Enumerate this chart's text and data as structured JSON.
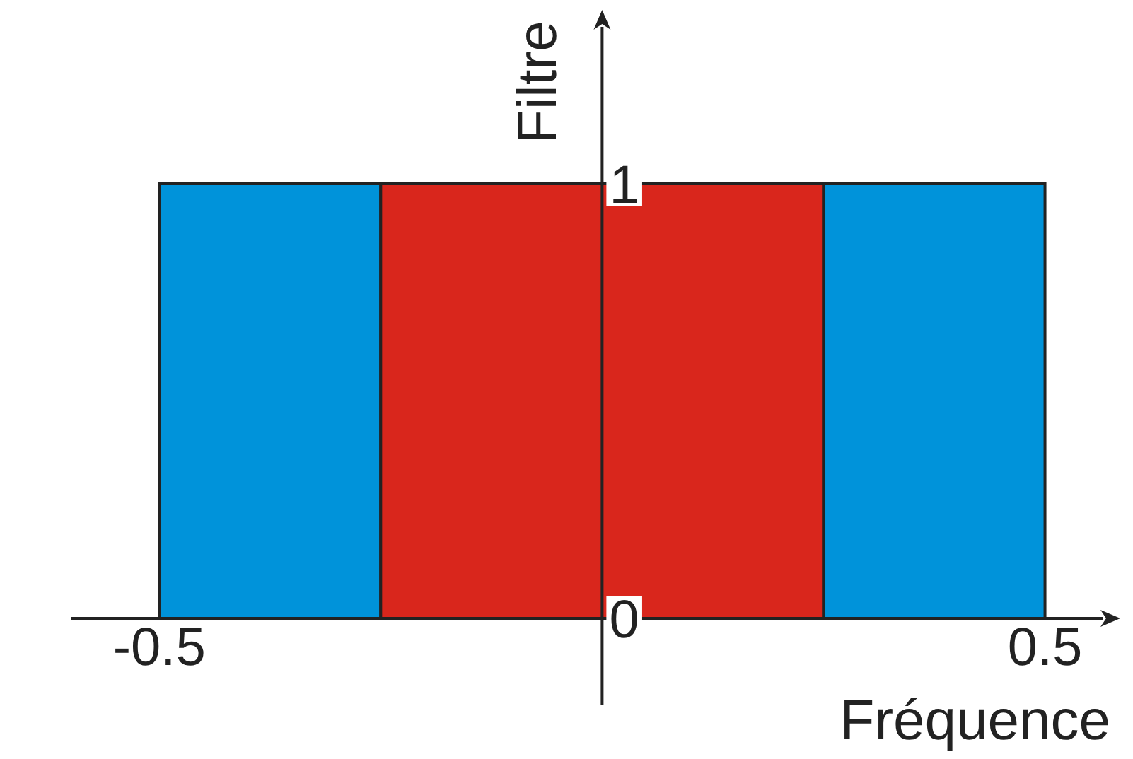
{
  "chart_data": {
    "type": "histogram",
    "xlabel": "Fréquence",
    "ylabel": "Filtre",
    "bins": [
      -0.5,
      -0.25,
      0.25,
      0.5
    ],
    "values": [
      1,
      1,
      1
    ],
    "colors": [
      "#0093da",
      "#d9261c",
      "#0093da"
    ],
    "xlim": [
      -0.6,
      0.585
    ],
    "ylim": [
      -0.2,
      1.4
    ],
    "xticks": [
      -0.5,
      0.5
    ],
    "yticks": [
      0,
      1
    ]
  }
}
